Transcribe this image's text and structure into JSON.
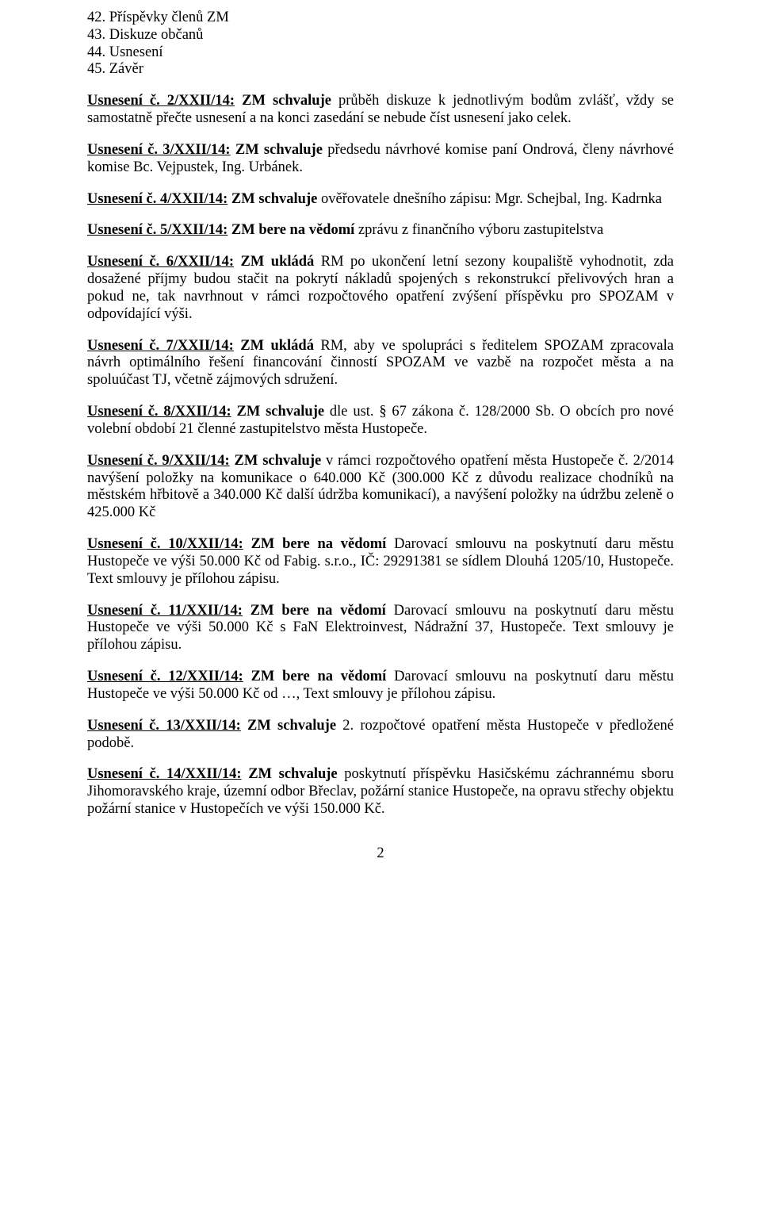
{
  "agenda": [
    "42. Příspěvky členů ZM",
    "43. Diskuze občanů",
    "44. Usnesení",
    "45. Závěr"
  ],
  "resolutions": [
    {
      "title": "Usnesení č. 2/XXII/14:",
      "action": " ZM schvaluje",
      "body": " průběh diskuze k jednotlivým bodům zvlášť, vždy se samostatně přečte usnesení a na konci zasedání se nebude číst usnesení jako celek."
    },
    {
      "title": "Usnesení č. 3/XXII/14:",
      "action": " ZM schvaluje",
      "body": " předsedu návrhové komise paní Ondrová, členy návrhové komise Bc. Vejpustek, Ing. Urbánek."
    },
    {
      "title": "Usnesení č. 4/XXII/14:",
      "action": " ZM schvaluje",
      "body": " ověřovatele dnešního zápisu: Mgr. Schejbal, Ing. Kadrnka"
    },
    {
      "title": "Usnesení č. 5/XXII/14:",
      "action": " ZM bere na vědomí",
      "body": " zprávu z finančního výboru zastupitelstva"
    },
    {
      "title": "Usnesení č. 6/XXII/14:",
      "action": " ZM ukládá",
      "body": " RM po ukončení letní sezony koupaliště vyhodnotit, zda dosažené příjmy budou stačit na pokrytí nákladů spojených s rekonstrukcí přelivových hran a pokud ne, tak navrhnout v rámci rozpočtového opatření zvýšení příspěvku pro SPOZAM v odpovídající výši."
    },
    {
      "title": "Usnesení č. 7/XXII/14:",
      "action": " ZM ukládá",
      "body": " RM, aby ve spolupráci s ředitelem SPOZAM zpracovala návrh optimálního řešení financování činností SPOZAM ve vazbě na rozpočet města a na spoluúčast TJ, včetně zájmových sdružení."
    },
    {
      "title": "Usnesení č. 8/XXII/14:",
      "action": " ZM schvaluje",
      "body": " dle ust. § 67 zákona č. 128/2000 Sb. O obcích pro nové volební období 21 členné zastupitelstvo města Hustopeče."
    },
    {
      "title": "Usnesení č. 9/XXII/14:",
      "action": " ZM schvaluje",
      "body": " v rámci rozpočtového opatření města Hustopeče č. 2/2014 navýšení položky na komunikace o 640.000 Kč (300.000 Kč z důvodu realizace chodníků na městském hřbitově a 340.000 Kč další údržba komunikací), a navýšení položky na údržbu zeleně o 425.000 Kč"
    },
    {
      "title": "Usnesení č. 10/XXII/14:",
      "action": " ZM bere na vědomí",
      "body": " Darovací smlouvu na poskytnutí daru městu Hustopeče ve výši 50.000 Kč od Fabig. s.r.o., IČ: 29291381 se sídlem Dlouhá 1205/10, Hustopeče. Text smlouvy je přílohou zápisu."
    },
    {
      "title": "Usnesení č. 11/XXII/14:",
      "action": " ZM bere na vědomí",
      "body": " Darovací smlouvu na poskytnutí daru městu Hustopeče ve výši 50.000 Kč s FaN Elektroinvest, Nádražní 37, Hustopeče. Text smlouvy je přílohou zápisu."
    },
    {
      "title": "Usnesení č. 12/XXII/14:",
      "action": " ZM bere na vědomí",
      "body": " Darovací smlouvu na poskytnutí daru městu Hustopeče ve výši 50.000 Kč od …, Text smlouvy je přílohou zápisu."
    },
    {
      "title": "Usnesení č. 13/XXII/14:",
      "action": " ZM schvaluje",
      "body": " 2. rozpočtové opatření města Hustopeče v předložené podobě."
    },
    {
      "title": "Usnesení č. 14/XXII/14:",
      "action": " ZM schvaluje",
      "body": " poskytnutí příspěvku Hasičskému záchrannému sboru Jihomoravského kraje, územní odbor Břeclav, požární stanice Hustopeče, na opravu střechy objektu požární stanice v Hustopečích ve výši 150.000 Kč."
    }
  ],
  "page_number": "2"
}
